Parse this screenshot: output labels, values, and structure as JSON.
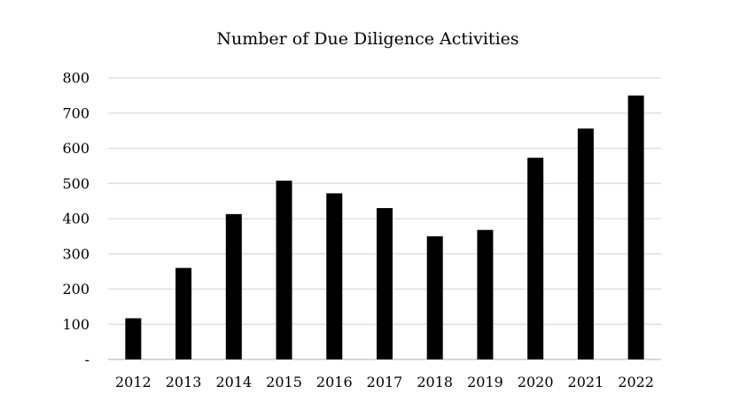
{
  "chart_data": {
    "type": "bar",
    "title": "Number of Due Diligence Activities",
    "xlabel": "",
    "ylabel": "",
    "categories": [
      "2012",
      "2013",
      "2014",
      "2015",
      "2016",
      "2017",
      "2018",
      "2019",
      "2020",
      "2021",
      "2022"
    ],
    "values": [
      117,
      260,
      413,
      508,
      472,
      430,
      350,
      368,
      573,
      656,
      750
    ],
    "ylim": [
      0,
      800
    ],
    "yticks": [
      0,
      100,
      200,
      300,
      400,
      500,
      600,
      700,
      800
    ],
    "ytick_labels": [
      "-",
      "100",
      "200",
      "300",
      "400",
      "500",
      "600",
      "700",
      "800"
    ],
    "grid": true,
    "legend": "none",
    "bar_color": "#000000"
  }
}
